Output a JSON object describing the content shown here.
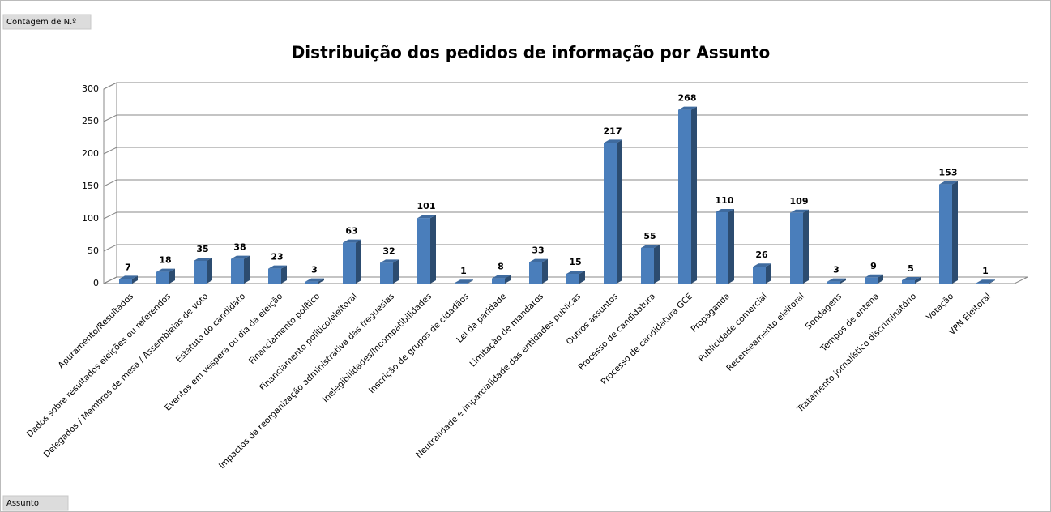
{
  "chart_data": {
    "type": "bar",
    "title": "Distribuição dos pedidos de informação por Assunto",
    "field_buttons": [
      "Contagem de N.º",
      "Assunto"
    ],
    "categories": [
      "Apuramento/Resultados",
      "Dados sobre resultados eleições ou referendos",
      "Delegados / Membros de mesa / Assembleias de voto",
      "Estatuto do candidato",
      "Eventos em véspera ou dia da eleição",
      "Financiamento político",
      "Financiamento político/eleitoral",
      "Impactos da reorganização administrativa das freguesias",
      "Inelegibilidades/Incompatibilidades",
      "Inscrição de grupos de cidadãos",
      "Lei da paridade",
      "Limitação de mandatos",
      "Neutralidade e imparcialidade das entidades públicas",
      "Outros assuntos",
      "Processo de candidatura",
      "Processo de candidatura GCE",
      "Propaganda",
      "Publicidade comercial",
      "Recenseamento eleitoral",
      "Sondagens",
      "Tempos de antena",
      "Tratamento jornalístico discriminatório",
      "Votação",
      "VPN Eleitoral"
    ],
    "values": [
      7,
      18,
      35,
      38,
      23,
      3,
      63,
      32,
      101,
      1,
      8,
      33,
      15,
      217,
      55,
      268,
      110,
      26,
      109,
      3,
      9,
      5,
      153,
      1
    ],
    "color": "#4a7ebb",
    "ylim": [
      0,
      300
    ],
    "yticks": [
      0,
      50,
      100,
      150,
      200,
      250,
      300
    ],
    "grid": true
  }
}
